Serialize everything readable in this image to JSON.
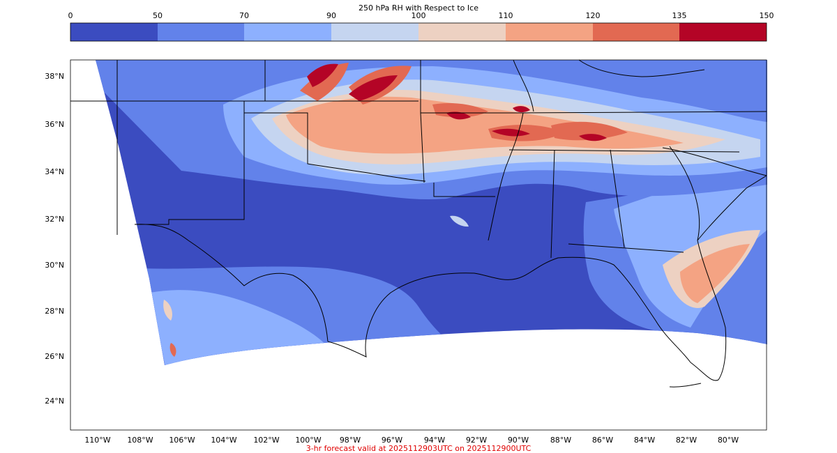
{
  "colorbar": {
    "title": "250 hPa RH with Respect to Ice",
    "levels": [
      "0",
      "50",
      "70",
      "90",
      "100",
      "110",
      "120",
      "135",
      "150"
    ],
    "colors": [
      "#3b4cc0",
      "#6282ea",
      "#8db0fe",
      "#c5d5f0",
      "#edd1c2",
      "#f4a383",
      "#e26952",
      "#b40426"
    ]
  },
  "map": {
    "lat_labels": [
      "38°N",
      "36°N",
      "34°N",
      "32°N",
      "30°N",
      "28°N",
      "26°N",
      "24°N"
    ],
    "lon_labels": [
      "110°W",
      "108°W",
      "106°W",
      "104°W",
      "102°W",
      "100°W",
      "98°W",
      "96°W",
      "94°W",
      "92°W",
      "90°W",
      "88°W",
      "86°W",
      "84°W",
      "82°W",
      "80°W"
    ],
    "land_fill": "#3b4cc0",
    "background": "#ffffff"
  },
  "footer": {
    "caption": "3-hr forecast valid at 2025112903UTC on 2025112900UTC",
    "color": "#e00000"
  }
}
